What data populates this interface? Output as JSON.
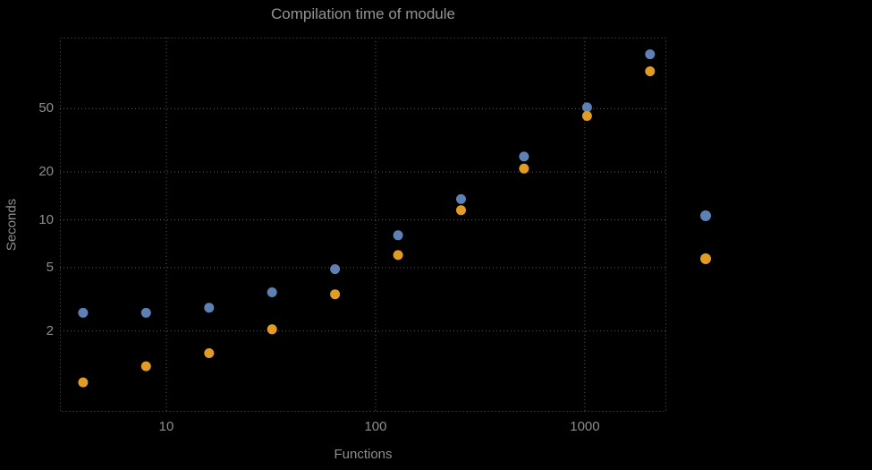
{
  "chart_data": {
    "type": "scatter",
    "title": "Compilation time of module",
    "xlabel": "Functions",
    "ylabel": "Seconds",
    "x_scale": "log",
    "y_scale": "log",
    "xlim": [
      3.1,
      2450
    ],
    "ylim": [
      0.62,
      140
    ],
    "x_ticks": [
      10,
      100,
      1000
    ],
    "y_ticks": [
      2,
      5,
      10,
      20,
      50
    ],
    "grid": "dotted",
    "x": [
      4,
      8,
      16,
      32,
      64,
      128,
      256,
      512,
      1024,
      2048
    ],
    "series": [
      {
        "name": "blue",
        "color": "#5e81b5",
        "values": [
          2.6,
          2.6,
          2.8,
          3.5,
          4.9,
          8.0,
          13.5,
          25,
          51,
          110
        ]
      },
      {
        "name": "orange",
        "color": "#e19c24",
        "values": [
          0.95,
          1.2,
          1.45,
          2.05,
          3.4,
          6.0,
          11.5,
          21,
          45,
          86
        ]
      }
    ],
    "legend_position": "right",
    "legend_markers": [
      {
        "series": "blue",
        "color": "#5e81b5"
      },
      {
        "series": "orange",
        "color": "#e19c24"
      }
    ]
  },
  "colors": {
    "background": "#000000",
    "text": "#8e8e8e",
    "grid": "#5c5c5c",
    "series_blue": "#5e81b5",
    "series_orange": "#e19c24"
  }
}
